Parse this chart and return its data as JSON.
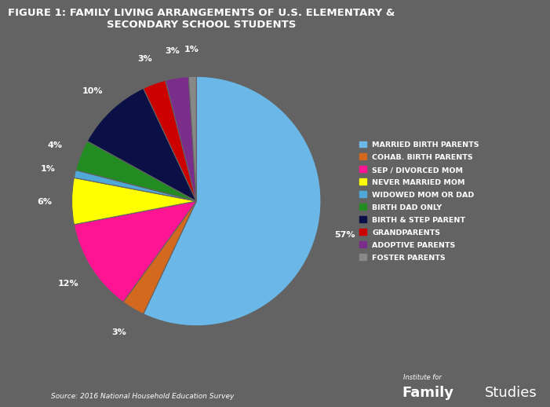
{
  "title": "FIGURE 1: FAMILY LIVING ARRANGEMENTS OF U.S. ELEMENTARY &\nSECONDARY SCHOOL STUDENTS",
  "labels": [
    "MARRIED BIRTH PARENTS",
    "COHAB. BIRTH PARENTS",
    "SEP / DIVORCED MOM",
    "NEVER MARRIED MOM",
    "WIDOWED MOM OR DAD",
    "BIRTH DAD ONLY",
    "BIRTH & STEP PARENT",
    "GRANDPARENTS",
    "ADOPTIVE PARENTS",
    "FOSTER PARENTS"
  ],
  "values": [
    57,
    3,
    12,
    6,
    1,
    4,
    10,
    3,
    3,
    1
  ],
  "colors": [
    "#6BB8E8",
    "#D2691E",
    "#FF1493",
    "#FFFF00",
    "#4FA8D8",
    "#228B22",
    "#0A1045",
    "#CC0000",
    "#7B2D8B",
    "#888888"
  ],
  "pct_labels": [
    "57%",
    "3%",
    "12%",
    "6%",
    "1%",
    "4%",
    "10%",
    "3%",
    "3%",
    "1%"
  ],
  "background_color": "#636363",
  "text_color": "#ffffff",
  "source_text": "Source: 2016 National Household Education Survey",
  "institute_for": "Institute for",
  "family": "Family",
  "studies": "Studies"
}
